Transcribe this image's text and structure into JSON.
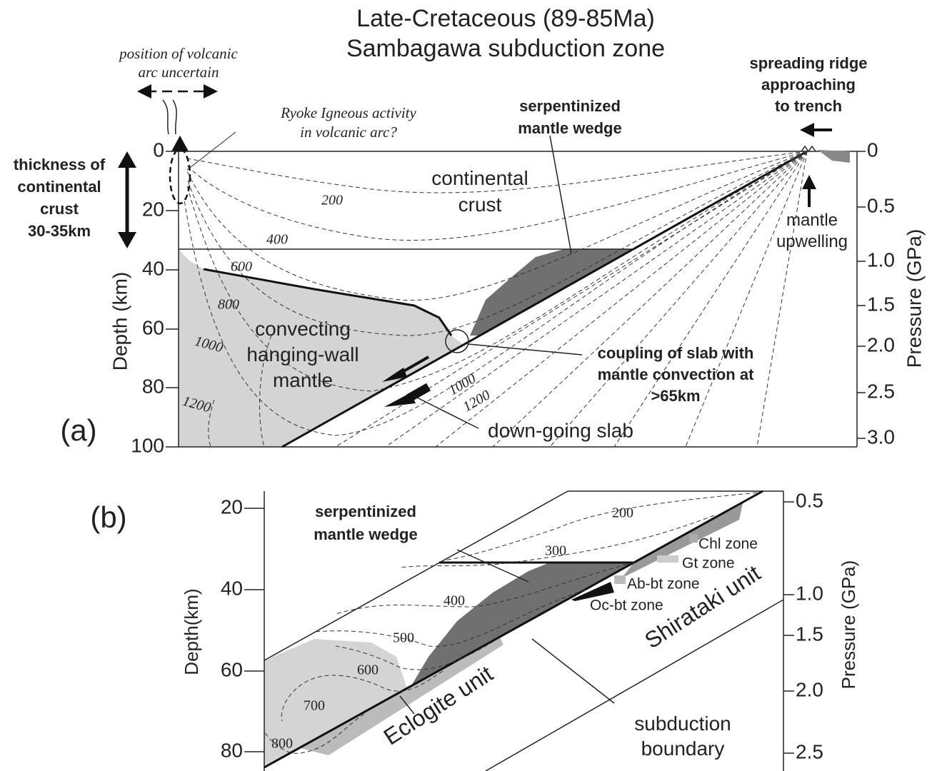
{
  "title": [
    "Late-Cretaceous (89-85Ma)",
    "Sambagawa subduction zone"
  ],
  "panel_a": {
    "label": "(a)",
    "depth_axis": {
      "title": "Depth (km)",
      "ticks": [
        "0",
        "20",
        "40",
        "60",
        "80",
        "100"
      ]
    },
    "pressure_axis": {
      "title": "Pressure (GPa)",
      "ticks": [
        "0",
        "0.5",
        "1.0",
        "1.5",
        "2.0",
        "2.5",
        "3.0"
      ]
    },
    "isotherms": [
      "200",
      "400",
      "600",
      "800",
      "1000",
      "1200",
      "1000",
      "1200"
    ],
    "annotations": {
      "volcanic_arc": [
        "position of volcanic",
        "arc uncertain"
      ],
      "ryoke": [
        "Ryoke Igneous activity",
        "in volcanic arc?"
      ],
      "wedge": [
        "serpentinized",
        "mantle wedge"
      ],
      "ridge": [
        "spreading ridge",
        "approaching",
        "to trench"
      ],
      "crust_thickness": [
        "thickness of",
        "continental",
        "crust",
        "30-35km"
      ],
      "continental_crust": [
        "continental",
        "crust"
      ],
      "upwelling": [
        "mantle",
        "upwelling"
      ],
      "convecting": [
        "convecting",
        "hanging-wall",
        "mantle"
      ],
      "coupling": [
        "coupling of slab with",
        "mantle convection at",
        ">65km"
      ],
      "slab": "down-going slab"
    }
  },
  "panel_b": {
    "label": "(b)",
    "depth_axis": {
      "title": "Depth(km)",
      "ticks": [
        "20",
        "40",
        "60",
        "80"
      ]
    },
    "pressure_axis": {
      "title": "Pressure (GPa)",
      "ticks": [
        "0.5",
        "1.0",
        "1.5",
        "2.0",
        "2.5"
      ]
    },
    "isotherms": [
      "200",
      "300",
      "400",
      "500",
      "600",
      "700",
      "800"
    ],
    "annotations": {
      "wedge": [
        "serpentinized",
        "mantle wedge"
      ],
      "zones": [
        "Chl zone",
        "Gt zone",
        "Ab-bt zone",
        "Oc-bt zone"
      ],
      "shirataki": "Shirataki unit",
      "eclogite": "Eclogite unit",
      "boundary": [
        "subduction",
        "boundary"
      ]
    }
  }
}
